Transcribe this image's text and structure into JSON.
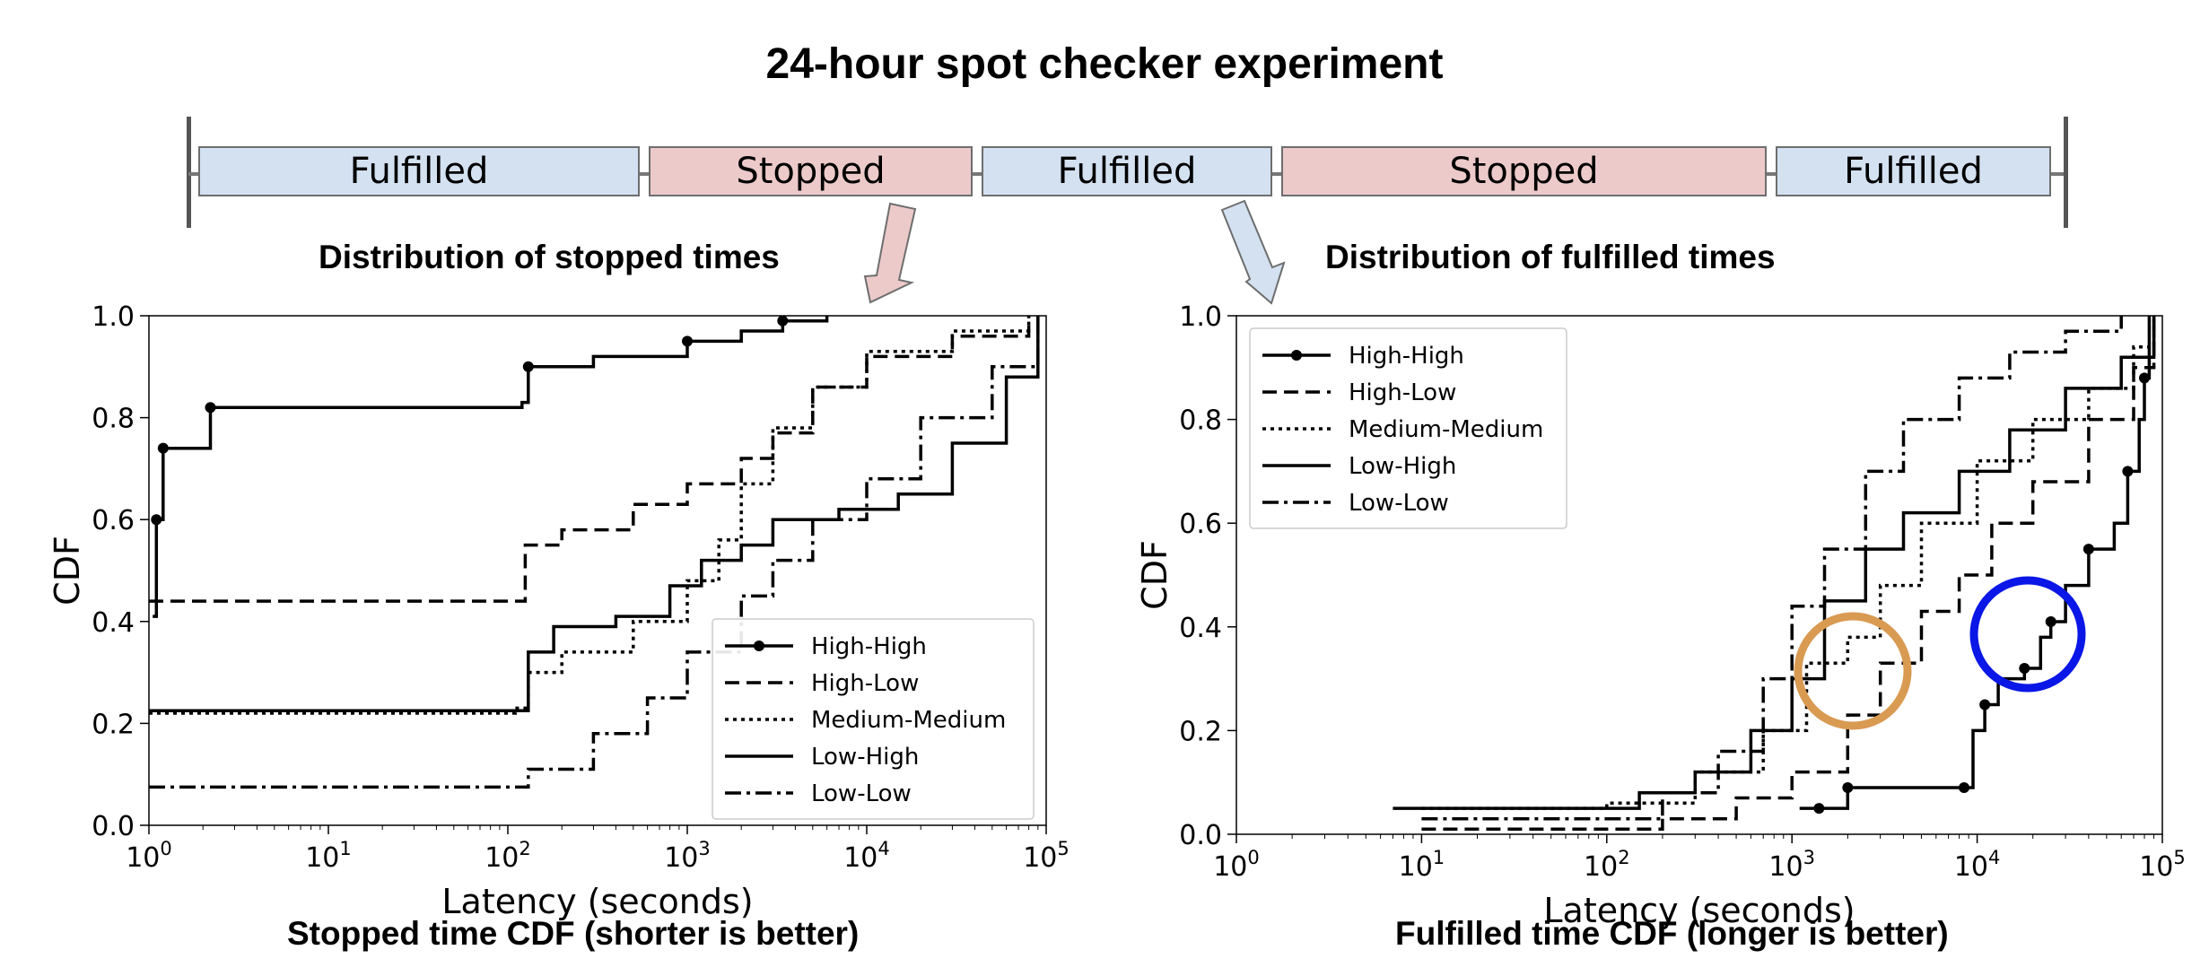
{
  "title": "24-hour spot checker experiment",
  "timeline": [
    {
      "label": "Fulfilled",
      "state": "fulfilled"
    },
    {
      "label": "Stopped",
      "state": "stopped"
    },
    {
      "label": "Fulfilled",
      "state": "fulfilled"
    },
    {
      "label": "Stopped",
      "state": "stopped"
    },
    {
      "label": "Fulfilled",
      "state": "fulfilled"
    }
  ],
  "colors": {
    "fulfilled_fill": "#d3e1f1",
    "stopped_fill": "#edcaca",
    "highlight_orange": "#d99a52",
    "highlight_blue": "#0a17e6",
    "line": "#000000"
  },
  "panels": {
    "left": {
      "heading": "Distribution of stopped times",
      "caption": "Stopped time CDF (shorter is better)"
    },
    "right": {
      "heading": "Distribution of fulfilled times",
      "caption": "Fulfilled time CDF (longer is better)"
    }
  },
  "chart_data": [
    {
      "type": "line",
      "xlabel": "Latency (seconds)",
      "ylabel": "CDF",
      "x_scale": "log",
      "xlim": [
        1,
        100000
      ],
      "ylim": [
        0,
        1
      ],
      "x_ticks": [
        {
          "base": "10",
          "exp": "0"
        },
        {
          "base": "10",
          "exp": "1"
        },
        {
          "base": "10",
          "exp": "2"
        },
        {
          "base": "10",
          "exp": "3"
        },
        {
          "base": "10",
          "exp": "4"
        },
        {
          "base": "10",
          "exp": "5"
        }
      ],
      "y_ticks": [
        "0.0",
        "0.2",
        "0.4",
        "0.6",
        "0.8",
        "1.0"
      ],
      "legend_position": "lower-right",
      "series": [
        {
          "name": "High-High",
          "style": "solid-marker",
          "points": [
            [
              1.05,
              0.41
            ],
            [
              1.1,
              0.6
            ],
            [
              1.2,
              0.74
            ],
            [
              1.6,
              0.74
            ],
            [
              2.2,
              0.82
            ],
            [
              120,
              0.83
            ],
            [
              130,
              0.9
            ],
            [
              300,
              0.92
            ],
            [
              1000,
              0.95
            ],
            [
              2000,
              0.97
            ],
            [
              3400,
              0.99
            ],
            [
              6000,
              1.0
            ]
          ]
        },
        {
          "name": "High-Low",
          "style": "dashed",
          "points": [
            [
              1,
              0.44
            ],
            [
              118,
              0.44
            ],
            [
              125,
              0.55
            ],
            [
              200,
              0.58
            ],
            [
              500,
              0.63
            ],
            [
              1000,
              0.67
            ],
            [
              2000,
              0.72
            ],
            [
              3000,
              0.77
            ],
            [
              5000,
              0.86
            ],
            [
              10000,
              0.92
            ],
            [
              30000,
              0.96
            ],
            [
              80000,
              1.0
            ]
          ]
        },
        {
          "name": "Medium-Medium",
          "style": "dotted",
          "points": [
            [
              1,
              0.22
            ],
            [
              110,
              0.23
            ],
            [
              130,
              0.3
            ],
            [
              200,
              0.34
            ],
            [
              500,
              0.4
            ],
            [
              1000,
              0.48
            ],
            [
              1500,
              0.56
            ],
            [
              2000,
              0.67
            ],
            [
              3000,
              0.78
            ],
            [
              5000,
              0.86
            ],
            [
              10000,
              0.93
            ],
            [
              30000,
              0.97
            ],
            [
              80000,
              1.0
            ]
          ]
        },
        {
          "name": "Low-High",
          "style": "solid",
          "points": [
            [
              1,
              0.225
            ],
            [
              110,
              0.225
            ],
            [
              130,
              0.34
            ],
            [
              180,
              0.39
            ],
            [
              400,
              0.41
            ],
            [
              800,
              0.47
            ],
            [
              1200,
              0.52
            ],
            [
              2000,
              0.55
            ],
            [
              3000,
              0.6
            ],
            [
              7000,
              0.62
            ],
            [
              15000,
              0.65
            ],
            [
              30000,
              0.75
            ],
            [
              60000,
              0.88
            ],
            [
              90000,
              1.0
            ]
          ]
        },
        {
          "name": "Low-Low",
          "style": "dashdot",
          "points": [
            [
              1,
              0.075
            ],
            [
              110,
              0.075
            ],
            [
              130,
              0.11
            ],
            [
              300,
              0.18
            ],
            [
              600,
              0.25
            ],
            [
              1000,
              0.34
            ],
            [
              2000,
              0.45
            ],
            [
              3000,
              0.52
            ],
            [
              5000,
              0.6
            ],
            [
              10000,
              0.68
            ],
            [
              20000,
              0.8
            ],
            [
              50000,
              0.9
            ],
            [
              90000,
              1.0
            ]
          ]
        }
      ]
    },
    {
      "type": "line",
      "xlabel": "Latency (seconds)",
      "ylabel": "CDF",
      "x_scale": "log",
      "xlim": [
        1,
        100000
      ],
      "ylim": [
        0,
        1
      ],
      "x_ticks": [
        {
          "base": "10",
          "exp": "0"
        },
        {
          "base": "10",
          "exp": "1"
        },
        {
          "base": "10",
          "exp": "2"
        },
        {
          "base": "10",
          "exp": "3"
        },
        {
          "base": "10",
          "exp": "4"
        },
        {
          "base": "10",
          "exp": "5"
        }
      ],
      "y_ticks": [
        "0.0",
        "0.2",
        "0.4",
        "0.6",
        "0.8",
        "1.0"
      ],
      "legend_position": "top-left",
      "series": [
        {
          "name": "High-High",
          "style": "solid-marker",
          "points": [
            [
              1100,
              0.05
            ],
            [
              1400,
              0.05
            ],
            [
              2000,
              0.09
            ],
            [
              4500,
              0.09
            ],
            [
              8500,
              0.09
            ],
            [
              9500,
              0.2
            ],
            [
              11000,
              0.25
            ],
            [
              13000,
              0.3
            ],
            [
              18000,
              0.32
            ],
            [
              22000,
              0.38
            ],
            [
              25000,
              0.41
            ],
            [
              30000,
              0.48
            ],
            [
              40000,
              0.55
            ],
            [
              55000,
              0.6
            ],
            [
              65000,
              0.7
            ],
            [
              75000,
              0.8
            ],
            [
              80000,
              0.88
            ],
            [
              85000,
              1.0
            ]
          ]
        },
        {
          "name": "High-Low",
          "style": "dashed",
          "points": [
            [
              10,
              0.01
            ],
            [
              100,
              0.01
            ],
            [
              200,
              0.03
            ],
            [
              500,
              0.07
            ],
            [
              1000,
              0.12
            ],
            [
              2000,
              0.23
            ],
            [
              3000,
              0.33
            ],
            [
              5000,
              0.43
            ],
            [
              8000,
              0.5
            ],
            [
              12000,
              0.6
            ],
            [
              20000,
              0.68
            ],
            [
              40000,
              0.8
            ],
            [
              70000,
              0.9
            ],
            [
              90000,
              1.0
            ]
          ]
        },
        {
          "name": "Medium-Medium",
          "style": "dotted",
          "points": [
            [
              10,
              0.05
            ],
            [
              100,
              0.06
            ],
            [
              300,
              0.12
            ],
            [
              700,
              0.2
            ],
            [
              1200,
              0.33
            ],
            [
              2000,
              0.38
            ],
            [
              3000,
              0.48
            ],
            [
              5000,
              0.6
            ],
            [
              10000,
              0.72
            ],
            [
              20000,
              0.8
            ],
            [
              40000,
              0.86
            ],
            [
              70000,
              0.94
            ],
            [
              90000,
              1.0
            ]
          ]
        },
        {
          "name": "Low-High",
          "style": "solid",
          "points": [
            [
              7,
              0.05
            ],
            [
              100,
              0.05
            ],
            [
              150,
              0.08
            ],
            [
              300,
              0.12
            ],
            [
              600,
              0.2
            ],
            [
              1000,
              0.3
            ],
            [
              1500,
              0.45
            ],
            [
              2500,
              0.55
            ],
            [
              4000,
              0.62
            ],
            [
              8000,
              0.7
            ],
            [
              15000,
              0.78
            ],
            [
              30000,
              0.86
            ],
            [
              60000,
              0.92
            ],
            [
              90000,
              1.0
            ]
          ]
        },
        {
          "name": "Low-Low",
          "style": "dashdot",
          "points": [
            [
              10,
              0.03
            ],
            [
              100,
              0.03
            ],
            [
              200,
              0.08
            ],
            [
              400,
              0.16
            ],
            [
              700,
              0.3
            ],
            [
              1000,
              0.44
            ],
            [
              1500,
              0.55
            ],
            [
              2500,
              0.7
            ],
            [
              4000,
              0.8
            ],
            [
              8000,
              0.88
            ],
            [
              15000,
              0.93
            ],
            [
              30000,
              0.97
            ],
            [
              60000,
              1.0
            ]
          ]
        }
      ]
    }
  ]
}
